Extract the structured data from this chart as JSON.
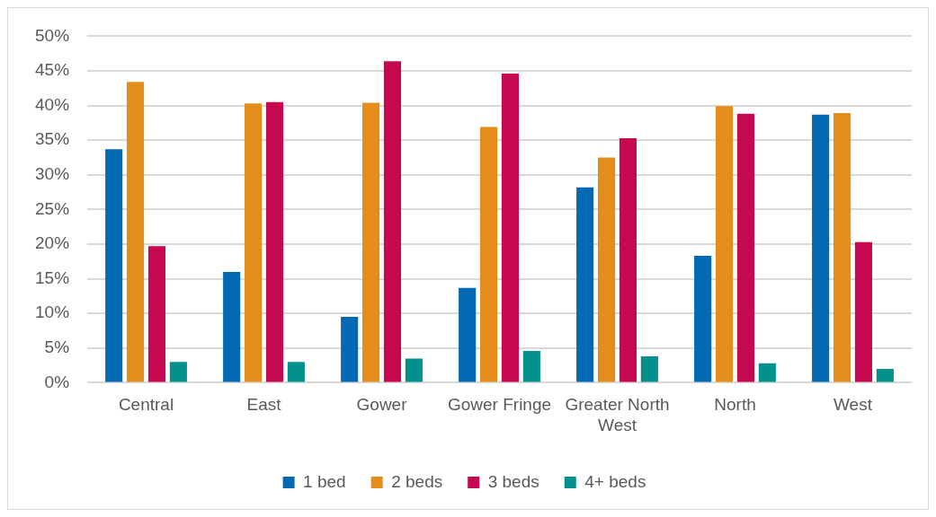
{
  "chart_data": {
    "type": "bar",
    "categories": [
      "Central",
      "East",
      "Gower",
      "Gower Fringe",
      "Greater North West",
      "North",
      "West"
    ],
    "series": [
      {
        "name": "1 bed",
        "color": "#0469b3",
        "values": [
          33.7,
          16.0,
          9.5,
          13.7,
          28.2,
          18.3,
          38.7
        ]
      },
      {
        "name": "2 beds",
        "color": "#e48d1b",
        "values": [
          43.4,
          40.3,
          40.4,
          36.9,
          32.5,
          39.9,
          38.9
        ]
      },
      {
        "name": "3 beds",
        "color": "#c5084f",
        "values": [
          19.7,
          40.5,
          46.4,
          44.6,
          35.3,
          38.8,
          20.3
        ]
      },
      {
        "name": "4+ beds",
        "color": "#02918c",
        "values": [
          3.0,
          3.0,
          3.5,
          4.6,
          3.8,
          2.8,
          2.0
        ]
      }
    ],
    "ylim": [
      0,
      50
    ],
    "yticks": [
      {
        "value": 0,
        "label": "0%"
      },
      {
        "value": 5,
        "label": "5%"
      },
      {
        "value": 10,
        "label": "10%"
      },
      {
        "value": 15,
        "label": "15%"
      },
      {
        "value": 20,
        "label": "20%"
      },
      {
        "value": 25,
        "label": "25%"
      },
      {
        "value": 30,
        "label": "30%"
      },
      {
        "value": 35,
        "label": "35%"
      },
      {
        "value": 40,
        "label": "40%"
      },
      {
        "value": 45,
        "label": "45%"
      },
      {
        "value": 50,
        "label": "50%"
      }
    ],
    "grid": "y",
    "legend": "bottom"
  }
}
